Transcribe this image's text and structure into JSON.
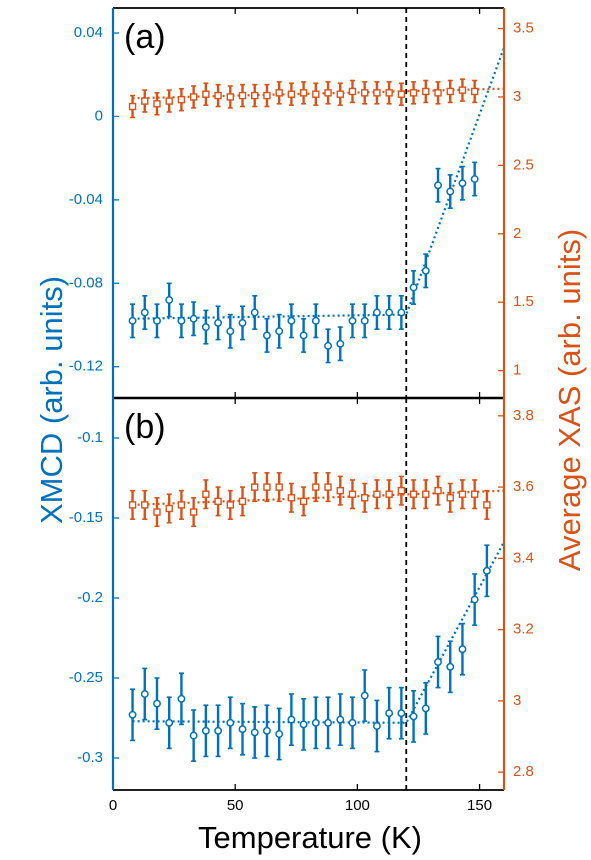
{
  "colors": {
    "xmcd": "#0072BD",
    "xas": "#D95319",
    "axis": "#000000",
    "transition_line": "#000000"
  },
  "axis_labels": {
    "x": "Temperature (K)",
    "y_left": "XMCD (arb. units)",
    "y_right": "Average XAS (arb. units)"
  },
  "x_ticks": [
    "0",
    "50",
    "100",
    "150"
  ],
  "panels": [
    {
      "label": "(a)",
      "left_ticks": [
        "0.04",
        "0",
        "-0.04",
        "-0.08",
        "-0.12"
      ],
      "right_ticks": [
        "3.5",
        "3",
        "2.5",
        "2",
        "1.5",
        "1"
      ]
    },
    {
      "label": "(b)",
      "left_ticks": [
        "-0.1",
        "-0.15",
        "-0.2",
        "-0.25",
        "-0.3"
      ],
      "right_ticks": [
        "3.8",
        "3.6",
        "3.4",
        "3.2",
        "3",
        "2.8"
      ]
    }
  ],
  "chart_data": [
    {
      "type": "scatter",
      "panel": "(a)",
      "xlabel": "Temperature (K)",
      "ylabel": "XMCD (arb. units)",
      "ylabel_right": "Average XAS (arb. units)",
      "xlim": [
        0,
        160
      ],
      "ylim_left": [
        -0.135,
        0.052
      ],
      "ylim_right": [
        0.8,
        3.65
      ],
      "vline_x": 120,
      "grid": false,
      "series": [
        {
          "axis": "left",
          "marker": "circle",
          "x": [
            8,
            13,
            18,
            23,
            28,
            33,
            38,
            43,
            48,
            53,
            58,
            63,
            68,
            73,
            78,
            83,
            88,
            93,
            98,
            103,
            108,
            113,
            118,
            123,
            128,
            133,
            138,
            143,
            148
          ],
          "y": [
            -0.098,
            -0.094,
            -0.098,
            -0.088,
            -0.098,
            -0.097,
            -0.101,
            -0.099,
            -0.103,
            -0.099,
            -0.094,
            -0.105,
            -0.103,
            -0.098,
            -0.105,
            -0.098,
            -0.11,
            -0.109,
            -0.098,
            -0.098,
            -0.094,
            -0.094,
            -0.094,
            -0.082,
            -0.074,
            -0.033,
            -0.036,
            -0.032,
            -0.03
          ],
          "err": [
            0.008,
            0.008,
            0.008,
            0.008,
            0.008,
            0.008,
            0.008,
            0.008,
            0.008,
            0.008,
            0.008,
            0.008,
            0.008,
            0.008,
            0.008,
            0.008,
            0.008,
            0.008,
            0.008,
            0.008,
            0.008,
            0.008,
            0.008,
            0.008,
            0.008,
            0.008,
            0.008,
            0.008,
            0.008
          ]
        },
        {
          "axis": "right",
          "marker": "square",
          "x": [
            8,
            13,
            18,
            23,
            28,
            33,
            38,
            43,
            48,
            53,
            58,
            63,
            68,
            73,
            78,
            83,
            88,
            93,
            98,
            103,
            108,
            113,
            118,
            123,
            128,
            133,
            138,
            143,
            148
          ],
          "y": [
            2.93,
            2.97,
            2.95,
            2.97,
            2.98,
            3.0,
            3.02,
            3.01,
            3.0,
            3.01,
            3.01,
            3.01,
            3.03,
            3.02,
            3.03,
            3.02,
            3.03,
            3.02,
            3.04,
            3.03,
            3.03,
            3.03,
            3.02,
            3.03,
            3.04,
            3.03,
            3.04,
            3.05,
            3.04
          ],
          "err": [
            0.08,
            0.08,
            0.08,
            0.08,
            0.08,
            0.08,
            0.08,
            0.08,
            0.08,
            0.08,
            0.08,
            0.08,
            0.08,
            0.08,
            0.08,
            0.08,
            0.08,
            0.08,
            0.08,
            0.08,
            0.08,
            0.08,
            0.08,
            0.08,
            0.08,
            0.08,
            0.08,
            0.08,
            0.08
          ]
        }
      ],
      "fits": [
        {
          "axis": "left",
          "points": [
            [
              8,
              -0.097
            ],
            [
              120,
              -0.095
            ],
            [
              160,
              0.033
            ]
          ]
        },
        {
          "axis": "right",
          "points": [
            [
              8,
              2.99
            ],
            [
              160,
              3.06
            ]
          ]
        }
      ]
    },
    {
      "type": "scatter",
      "panel": "(b)",
      "xlabel": "Temperature (K)",
      "ylabel": "XMCD (arb. units)",
      "ylabel_right": "Average XAS (arb. units)",
      "xlim": [
        0,
        160
      ],
      "ylim_left": [
        -0.32,
        -0.075
      ],
      "ylim_right": [
        2.75,
        3.85
      ],
      "vline_x": 120,
      "grid": false,
      "series": [
        {
          "axis": "left",
          "marker": "circle",
          "x": [
            8,
            13,
            18,
            23,
            28,
            33,
            38,
            43,
            48,
            53,
            58,
            63,
            68,
            73,
            78,
            83,
            88,
            93,
            98,
            103,
            108,
            113,
            118,
            123,
            128,
            133,
            138,
            143,
            148,
            153
          ],
          "y": [
            -0.273,
            -0.26,
            -0.266,
            -0.278,
            -0.263,
            -0.286,
            -0.283,
            -0.283,
            -0.278,
            -0.282,
            -0.284,
            -0.283,
            -0.285,
            -0.276,
            -0.279,
            -0.278,
            -0.278,
            -0.276,
            -0.278,
            -0.261,
            -0.28,
            -0.272,
            -0.272,
            -0.274,
            -0.269,
            -0.24,
            -0.243,
            -0.232,
            -0.201,
            -0.183
          ],
          "err": [
            0.016,
            0.016,
            0.016,
            0.016,
            0.016,
            0.016,
            0.016,
            0.016,
            0.016,
            0.016,
            0.016,
            0.016,
            0.016,
            0.016,
            0.016,
            0.016,
            0.016,
            0.016,
            0.016,
            0.016,
            0.016,
            0.016,
            0.016,
            0.016,
            0.016,
            0.016,
            0.016,
            0.016,
            0.016,
            0.016
          ]
        },
        {
          "axis": "right",
          "marker": "square",
          "x": [
            8,
            13,
            18,
            23,
            28,
            33,
            38,
            43,
            48,
            53,
            58,
            63,
            68,
            73,
            78,
            83,
            88,
            93,
            98,
            103,
            108,
            113,
            118,
            123,
            128,
            133,
            138,
            143,
            148,
            153
          ],
          "y": [
            3.55,
            3.55,
            3.53,
            3.54,
            3.55,
            3.53,
            3.58,
            3.56,
            3.55,
            3.56,
            3.6,
            3.6,
            3.6,
            3.57,
            3.56,
            3.6,
            3.6,
            3.59,
            3.58,
            3.57,
            3.58,
            3.58,
            3.59,
            3.58,
            3.58,
            3.59,
            3.57,
            3.58,
            3.58,
            3.55
          ],
          "err": [
            0.04,
            0.04,
            0.04,
            0.04,
            0.04,
            0.04,
            0.04,
            0.04,
            0.04,
            0.04,
            0.04,
            0.04,
            0.04,
            0.04,
            0.04,
            0.04,
            0.04,
            0.04,
            0.04,
            0.04,
            0.04,
            0.04,
            0.04,
            0.04,
            0.04,
            0.04,
            0.04,
            0.04,
            0.04,
            0.04
          ]
        }
      ],
      "fits": [
        {
          "axis": "left",
          "points": [
            [
              8,
              -0.277
            ],
            [
              120,
              -0.278
            ],
            [
              160,
              -0.165
            ]
          ]
        },
        {
          "axis": "right",
          "points": [
            [
              8,
              3.55
            ],
            [
              160,
              3.59
            ]
          ]
        }
      ]
    }
  ]
}
